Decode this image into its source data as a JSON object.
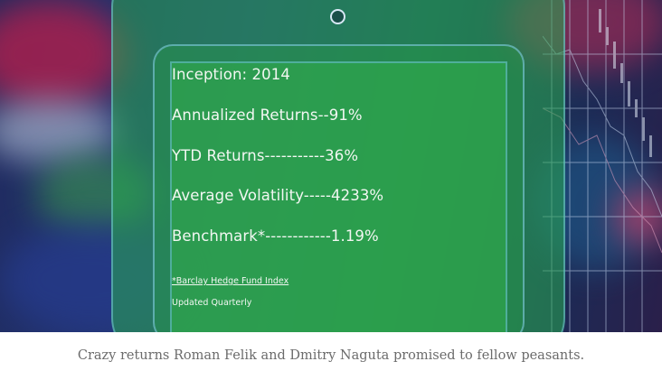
{
  "image": {
    "stats": {
      "inception": "Inception: 2014",
      "annualized": "Annualized Returns--91%",
      "ytd": "YTD Returns-----------36%",
      "volatility": "Average Volatility-----4233%",
      "benchmark": "Benchmark*------------1.19%"
    },
    "footnote": "*Barclay Hedge Fund Index",
    "updated": "Updated Quarterly"
  },
  "caption": "Crazy returns Roman Felik and Dmitry Naguta promised to fellow peasants.",
  "colors": {
    "tablet_green": "#2aaa50",
    "caption_gray": "#6b6b6b",
    "text_white": "#f2f7f2"
  }
}
